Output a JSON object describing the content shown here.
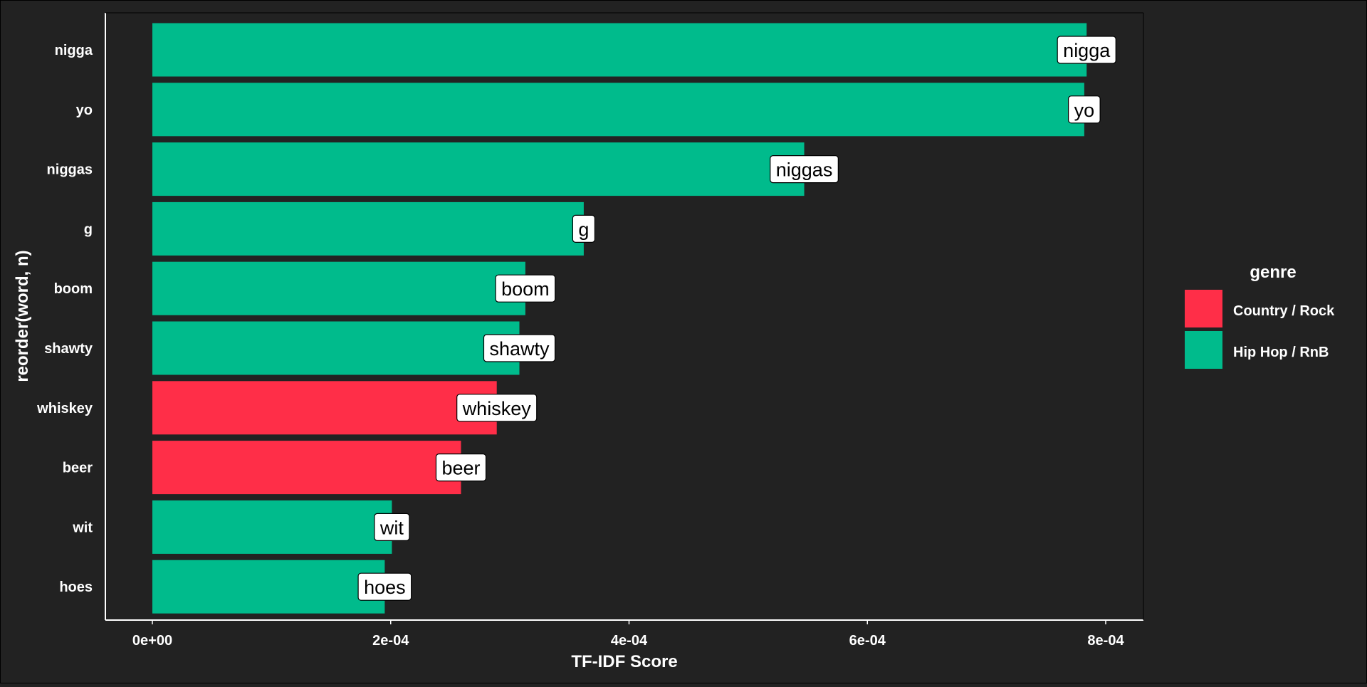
{
  "chart_data": {
    "type": "bar",
    "orientation": "horizontal",
    "xlabel": "TF-IDF Score",
    "ylabel": "reorder(word, n)",
    "xlim": [
      0,
      0.00082
    ],
    "x_ticks": [
      {
        "value": 0,
        "label": "0e+00"
      },
      {
        "value": 0.0002,
        "label": "2e-04"
      },
      {
        "value": 0.0004,
        "label": "4e-04"
      },
      {
        "value": 0.0006,
        "label": "6e-04"
      },
      {
        "value": 0.0008,
        "label": "8e-04"
      }
    ],
    "grid": false,
    "legend": {
      "title": "genre",
      "position": "right",
      "entries": [
        {
          "name": "Country / Rock",
          "color": "#ff2e48"
        },
        {
          "name": "Hip Hop / RnB",
          "color": "#00bb8c"
        }
      ]
    },
    "bars": [
      {
        "word": "nigga",
        "value": 0.000784,
        "genre": "Hip Hop / RnB",
        "label": "nigga"
      },
      {
        "word": "yo",
        "value": 0.000782,
        "genre": "Hip Hop / RnB",
        "label": "yo"
      },
      {
        "word": "niggas",
        "value": 0.000547,
        "genre": "Hip Hop / RnB",
        "label": "niggas"
      },
      {
        "word": "g",
        "value": 0.000362,
        "genre": "Hip Hop / RnB",
        "label": "g"
      },
      {
        "word": "boom",
        "value": 0.000313,
        "genre": "Hip Hop / RnB",
        "label": "boom"
      },
      {
        "word": "shawty",
        "value": 0.000308,
        "genre": "Hip Hop / RnB",
        "label": "shawty"
      },
      {
        "word": "whiskey",
        "value": 0.000289,
        "genre": "Country / Rock",
        "label": "whiskey"
      },
      {
        "word": "beer",
        "value": 0.000259,
        "genre": "Country / Rock",
        "label": "beer"
      },
      {
        "word": "wit",
        "value": 0.000201,
        "genre": "Hip Hop / RnB",
        "label": "wit"
      },
      {
        "word": "hoes",
        "value": 0.000195,
        "genre": "Hip Hop / RnB",
        "label": "hoes"
      }
    ]
  },
  "colors": {
    "background": "#222222",
    "axis": "#ffffff",
    "label_fill": "#ffffff",
    "label_border": "#000000"
  }
}
